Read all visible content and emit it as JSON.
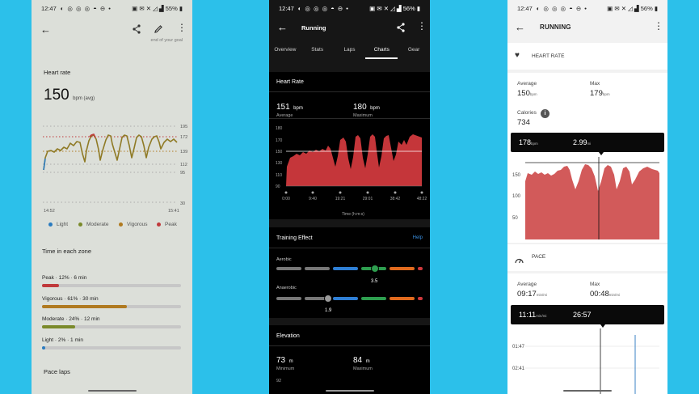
{
  "status_left": {
    "time": "12:47"
  },
  "status_right": {
    "p1_battery": "55%",
    "p2_battery": "56%",
    "p3_battery": "56%"
  },
  "p1": {
    "cut_top_text": "end of your goal",
    "heart_title": "Heart rate",
    "avg_value": "150",
    "avg_unit": "bpm (avg)",
    "y_ticks": [
      "195",
      "172",
      "139",
      "112",
      "95",
      "30"
    ],
    "x_start": "14:52",
    "x_end": "15:41",
    "legend": [
      {
        "label": "Light",
        "color": "#2a7bbf"
      },
      {
        "label": "Moderate",
        "color": "#7a8a2a"
      },
      {
        "label": "Vigorous",
        "color": "#b07a20"
      },
      {
        "label": "Peak",
        "color": "#c0393b"
      }
    ],
    "zones_title": "Time in each zone",
    "zones": [
      {
        "label": "Peak · 12% · 6 min",
        "pct": 12,
        "color": "#c0393b"
      },
      {
        "label": "Vigorous · 61% · 30 min",
        "pct": 61,
        "color": "#b07a20"
      },
      {
        "label": "Moderate · 24% · 12 min",
        "pct": 24,
        "color": "#7a8a2a"
      },
      {
        "label": "Light · 2% · 1 min",
        "pct": 2,
        "color": "#2a7bbf"
      }
    ],
    "pace_title": "Pace laps"
  },
  "p2": {
    "title": "Running",
    "tabs": [
      "Overview",
      "Stats",
      "Laps",
      "Charts",
      "Gear"
    ],
    "hr_title": "Heart Rate",
    "avg_val": "151",
    "avg_unit": "bpm",
    "avg_lbl": "Average",
    "max_val": "180",
    "max_unit": "bpm",
    "max_lbl": "Maximum",
    "y_ticks": [
      "180",
      "170",
      "150",
      "130",
      "110",
      "90"
    ],
    "x_ticks": [
      "0:00",
      "9:40",
      "19:21",
      "29:01",
      "38:42",
      "48:22"
    ],
    "x_label": "Time (h:m:s)",
    "te_title": "Training Effect",
    "te_help": "Help",
    "aerobic_lbl": "Aerobic",
    "aerobic_val": "3.5",
    "anaerobic_lbl": "Anaerobic",
    "anaerobic_val": "1.9",
    "elev_title": "Elevation",
    "elev_min_val": "73",
    "elev_min_unit": "m",
    "elev_min_lbl": "Minimum",
    "elev_max_val": "84",
    "elev_max_unit": "m",
    "elev_max_lbl": "Maximum",
    "elev_tick": "92"
  },
  "p3": {
    "title": "RUNNING",
    "hr_section": "HEART RATE",
    "avg_lbl": "Average",
    "avg_val": "150",
    "avg_unit": "bpm",
    "max_lbl": "Max",
    "max_val": "179",
    "max_unit": "bpm",
    "cal_lbl": "Calories",
    "cal_val": "734",
    "tooltip_bpm": "178",
    "tooltip_bpm_unit": "bpm",
    "tooltip_dist": "2.99",
    "tooltip_dist_unit": "mi",
    "y_ticks": [
      "150",
      "100",
      "50"
    ],
    "pace_section": "PACE",
    "pace_avg_lbl": "Average",
    "pace_avg_val": "09:17",
    "pace_avg_unit": "min/mi",
    "pace_max_lbl": "Max",
    "pace_max_val": "00:48",
    "pace_max_unit": "min/mi",
    "pace_tip_val": "11:11",
    "pace_tip_unit": "min/mi",
    "pace_tip_time": "26:57",
    "pace_y_ticks": [
      "01:47",
      "02:41"
    ]
  }
}
